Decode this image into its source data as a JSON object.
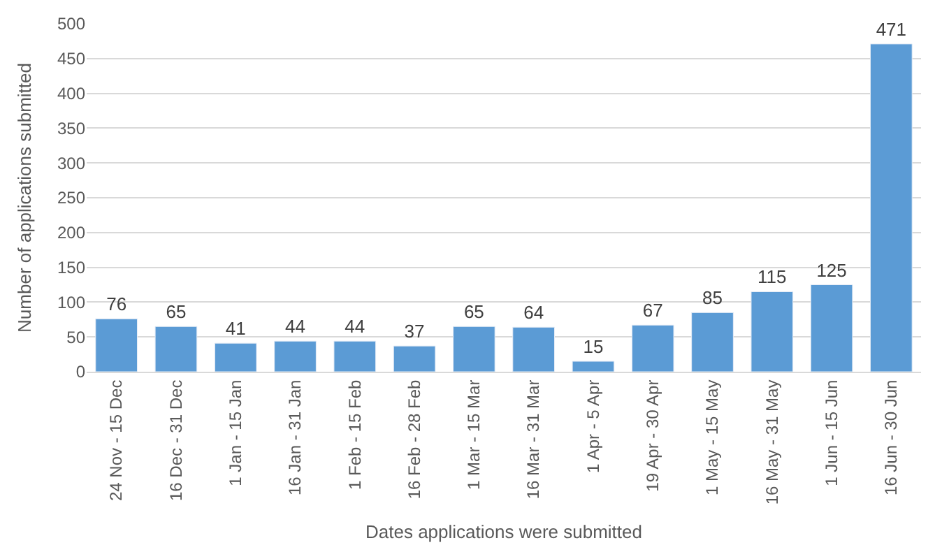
{
  "chart_data": {
    "type": "bar",
    "categories": [
      "24 Nov - 15 Dec",
      "16 Dec - 31 Dec",
      "1 Jan - 15 Jan",
      "16 Jan - 31 Jan",
      "1 Feb - 15 Feb",
      "16 Feb - 28 Feb",
      "1 Mar - 15 Mar",
      "16 Mar - 31 Mar",
      "1 Apr - 5 Apr",
      "19 Apr - 30 Apr",
      "1 May - 15 May",
      "16 May - 31 May",
      "1 Jun - 15 Jun",
      "16 Jun - 30 Jun"
    ],
    "values": [
      76,
      65,
      41,
      44,
      44,
      37,
      65,
      64,
      15,
      67,
      85,
      115,
      125,
      471
    ],
    "color": "#5b9bd5",
    "xlabel": "Dates applications were submitted",
    "ylabel": "Number of applications submitted",
    "ylim": [
      0,
      500
    ],
    "yticks": [
      0,
      50,
      100,
      150,
      200,
      250,
      300,
      350,
      400,
      450,
      500
    ],
    "grid": "y",
    "data_labels": true,
    "legend": false
  }
}
